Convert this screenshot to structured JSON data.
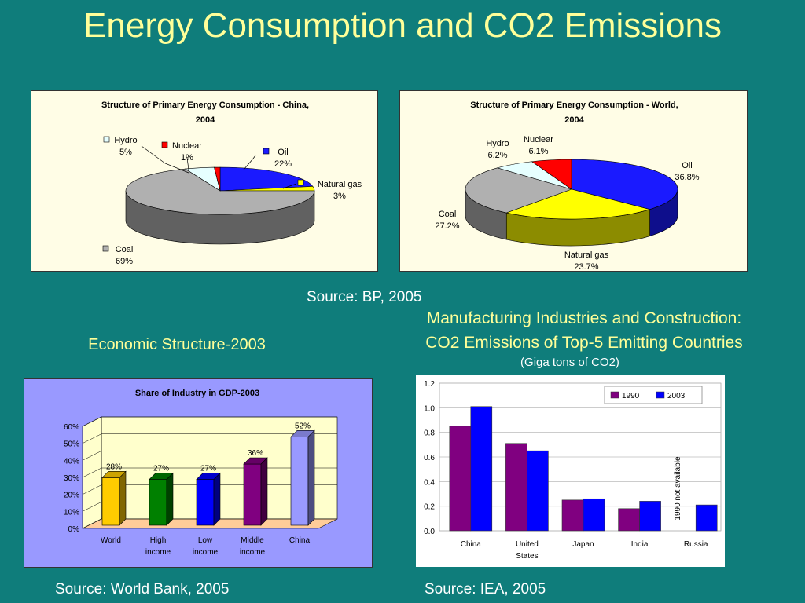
{
  "slide": {
    "title": "Energy Consumption and CO2 Emissions",
    "source_bp": "Source: BP, 2005",
    "econ_heading": "Economic Structure-2003",
    "mfg_heading_line1": "Manufacturing Industries and Construction:",
    "mfg_heading_line2": "CO2 Emissions of Top-5 Emitting Countries",
    "mfg_unit": "(Giga tons of CO2)",
    "source_wb": "Source: World Bank, 2005",
    "source_iea": "Source: IEA, 2005"
  },
  "chart_data": [
    {
      "type": "pie",
      "title_line1": "Structure of Primary Energy Consumption - China,",
      "title_line2": "2004",
      "slices": [
        {
          "label": "Oil",
          "pct_label": "22%",
          "value": 22,
          "color": "#1a1aff"
        },
        {
          "label": "Natural gas",
          "pct_label": "3%",
          "value": 3,
          "color": "#ffff00"
        },
        {
          "label": "Coal",
          "pct_label": "69%",
          "value": 69,
          "color": "#b0b0b0"
        },
        {
          "label": "Hydro",
          "pct_label": "5%",
          "value": 5,
          "color": "#e6ffff"
        },
        {
          "label": "Nuclear",
          "pct_label": "1%",
          "value": 1,
          "color": "#ff0000"
        }
      ]
    },
    {
      "type": "pie",
      "title_line1": "Structure of Primary Energy Consumption - World,",
      "title_line2": "2004",
      "slices": [
        {
          "label": "Oil",
          "pct_label": "36.8%",
          "value": 36.8,
          "color": "#1a1aff"
        },
        {
          "label": "Natural gas",
          "pct_label": "23.7%",
          "value": 23.7,
          "color": "#ffff00"
        },
        {
          "label": "Coal",
          "pct_label": "27.2%",
          "value": 27.2,
          "color": "#b0b0b0"
        },
        {
          "label": "Hydro",
          "pct_label": "6.2%",
          "value": 6.2,
          "color": "#e6ffff"
        },
        {
          "label": "Nuclear",
          "pct_label": "6.1%",
          "value": 6.1,
          "color": "#ff0000"
        }
      ]
    },
    {
      "type": "bar",
      "title": "Share of Industry in GDP-2003",
      "categories": [
        [
          "World"
        ],
        [
          "High",
          "income"
        ],
        [
          "Low",
          "income"
        ],
        [
          "Middle",
          "income"
        ],
        [
          "China"
        ]
      ],
      "values": [
        28,
        27,
        27,
        36,
        52
      ],
      "value_labels": [
        "28%",
        "27%",
        "27%",
        "36%",
        "52%"
      ],
      "colors": [
        "#ffcc00",
        "#008000",
        "#0000ff",
        "#800080",
        "#9999ff"
      ],
      "ylim": [
        0,
        60
      ],
      "yticks": [
        "0%",
        "10%",
        "20%",
        "30%",
        "40%",
        "50%",
        "60%"
      ]
    },
    {
      "type": "bar",
      "categories": [
        [
          "China"
        ],
        [
          "United",
          "States"
        ],
        [
          "Japan"
        ],
        [
          "India"
        ],
        [
          "Russia"
        ]
      ],
      "series": [
        {
          "name": "1990",
          "values": [
            0.85,
            0.71,
            0.25,
            0.18,
            null
          ],
          "color": "#800080"
        },
        {
          "name": "2003",
          "values": [
            1.01,
            0.65,
            0.26,
            0.24,
            0.21
          ],
          "color": "#0000ff"
        }
      ],
      "ylim": [
        0,
        1.2
      ],
      "yticks": [
        "0.0",
        "0.2",
        "0.4",
        "0.6",
        "0.8",
        "1.0",
        "1.2"
      ],
      "annotation": "1990 not available",
      "grid": true
    }
  ]
}
